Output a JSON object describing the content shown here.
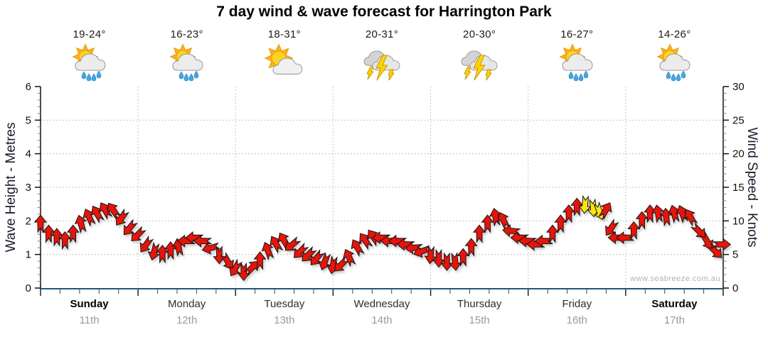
{
  "title": "7 day wind & wave forecast for Harrington Park",
  "watermark": "www.seabreeze.com.au",
  "axis": {
    "left_label": "Wave Height - Metres",
    "right_label": "Wind Speed - Knots",
    "left_ticks": [
      "0",
      "1",
      "2",
      "3",
      "4",
      "5",
      "6"
    ],
    "right_ticks": [
      "0",
      "5",
      "10",
      "15",
      "20",
      "25",
      "30"
    ]
  },
  "days": [
    {
      "name": "Sunday",
      "date": "11th",
      "temp": "19-24°",
      "icon": "sun-cloud-rain",
      "weekend": true
    },
    {
      "name": "Monday",
      "date": "12th",
      "temp": "16-23°",
      "icon": "sun-cloud-rain",
      "weekend": false
    },
    {
      "name": "Tuesday",
      "date": "13th",
      "temp": "18-31°",
      "icon": "sun-cloud",
      "weekend": false
    },
    {
      "name": "Wednesday",
      "date": "14th",
      "temp": "20-31°",
      "icon": "storm",
      "weekend": false
    },
    {
      "name": "Thursday",
      "date": "15th",
      "temp": "20-30°",
      "icon": "storm",
      "weekend": false
    },
    {
      "name": "Friday",
      "date": "16th",
      "temp": "16-27°",
      "icon": "sun-cloud-rain",
      "weekend": false
    },
    {
      "name": "Saturday",
      "date": "17th",
      "temp": "14-26°",
      "icon": "sun-cloud-rain",
      "weekend": true
    }
  ],
  "colors": {
    "arrow_red": "#e8140a",
    "arrow_yellow": "#ffe60a",
    "arrow_outline": "#151515",
    "bottom_axis": "#1f5876",
    "grid": "#b4b4b4",
    "tick_major": "#111111",
    "tick_minor": "#8a8a8a",
    "axis_text": "#111111"
  },
  "chart_data": {
    "type": "wind-arrow-series",
    "title": "7 day wind & wave forecast for Harrington Park",
    "x_range_hours": [
      0,
      168
    ],
    "x_note": "hour 0 = start of Sunday 11th, 24 h per day, 7 days",
    "y_left": {
      "label": "Wave Height - Metres",
      "range": [
        0,
        6
      ]
    },
    "y_right": {
      "label": "Wind Speed - Knots",
      "range": [
        0,
        30
      ]
    },
    "grid": {
      "horizontal_every_knots": 5,
      "vertical_every_hours": 24,
      "style": "dotted"
    },
    "point_format": "[hour, wind_speed_knots, arrow_heading_deg (0=up,90=right,180=down,270=left), optional 'yellow']",
    "points": [
      [
        0,
        9.5,
        0
      ],
      [
        2,
        8,
        0
      ],
      [
        4,
        7.5,
        0
      ],
      [
        6,
        7,
        0
      ],
      [
        8,
        8,
        0
      ],
      [
        10,
        9.5,
        -15
      ],
      [
        12,
        10.5,
        -25
      ],
      [
        14,
        11,
        -30
      ],
      [
        16,
        11.5,
        -30
      ],
      [
        18,
        11.5,
        -35
      ],
      [
        20,
        10.5,
        215
      ],
      [
        22,
        9,
        220
      ],
      [
        24,
        8,
        225
      ],
      [
        26,
        6.5,
        215
      ],
      [
        28,
        5.5,
        195
      ],
      [
        30,
        5,
        0
      ],
      [
        32,
        5.5,
        0
      ],
      [
        34,
        6,
        -10
      ],
      [
        36,
        7,
        270
      ],
      [
        38,
        7.5,
        270
      ],
      [
        40,
        7,
        270
      ],
      [
        42,
        6,
        255
      ],
      [
        44,
        5,
        180
      ],
      [
        46,
        4,
        150
      ],
      [
        48,
        3,
        210
      ],
      [
        50,
        2.5,
        180
      ],
      [
        52,
        3,
        45
      ],
      [
        54,
        4,
        0
      ],
      [
        56,
        5.5,
        -20
      ],
      [
        58,
        6.5,
        -30
      ],
      [
        60,
        7,
        -30
      ],
      [
        62,
        6.5,
        230
      ],
      [
        64,
        5.5,
        225
      ],
      [
        66,
        5,
        225
      ],
      [
        68,
        4.5,
        220
      ],
      [
        70,
        4,
        200
      ],
      [
        72,
        3.5,
        190
      ],
      [
        74,
        3.5,
        225
      ],
      [
        76,
        4.5,
        -25
      ],
      [
        78,
        6,
        -30
      ],
      [
        80,
        7,
        -35
      ],
      [
        82,
        7.5,
        -35
      ],
      [
        84,
        7.5,
        270
      ],
      [
        86,
        7,
        270
      ],
      [
        88,
        7,
        270
      ],
      [
        90,
        6.5,
        270
      ],
      [
        92,
        6,
        265
      ],
      [
        94,
        5.5,
        250
      ],
      [
        96,
        5,
        185
      ],
      [
        98,
        4.5,
        180
      ],
      [
        100,
        4,
        180
      ],
      [
        102,
        4,
        175
      ],
      [
        104,
        4.5,
        0
      ],
      [
        106,
        6,
        0
      ],
      [
        108,
        8,
        0
      ],
      [
        110,
        9.5,
        0
      ],
      [
        112,
        10.5,
        -10
      ],
      [
        114,
        10,
        -25
      ],
      [
        116,
        8.5,
        275
      ],
      [
        118,
        7.5,
        270
      ],
      [
        120,
        7,
        270
      ],
      [
        122,
        6.5,
        270
      ],
      [
        124,
        7,
        270
      ],
      [
        126,
        8,
        0
      ],
      [
        128,
        9.5,
        0
      ],
      [
        130,
        11,
        0
      ],
      [
        132,
        12,
        0
      ],
      [
        134,
        12.5,
        185,
        "yellow"
      ],
      [
        136,
        12,
        175,
        "yellow"
      ],
      [
        137.5,
        11.5,
        160,
        "yellow"
      ],
      [
        139,
        11.5,
        30
      ],
      [
        140.5,
        9,
        215
      ],
      [
        142,
        7.5,
        270
      ],
      [
        144,
        7.5,
        270
      ],
      [
        146,
        8.5,
        0
      ],
      [
        148,
        10,
        0
      ],
      [
        150,
        11,
        0
      ],
      [
        152,
        11,
        -10
      ],
      [
        154,
        10.5,
        -5
      ],
      [
        156,
        11,
        -15
      ],
      [
        158,
        11,
        -20
      ],
      [
        160,
        10.5,
        -30
      ],
      [
        162,
        8.5,
        135
      ],
      [
        164,
        7,
        150
      ],
      [
        166,
        5.5,
        135
      ],
      [
        167.5,
        6.5,
        90
      ]
    ]
  }
}
